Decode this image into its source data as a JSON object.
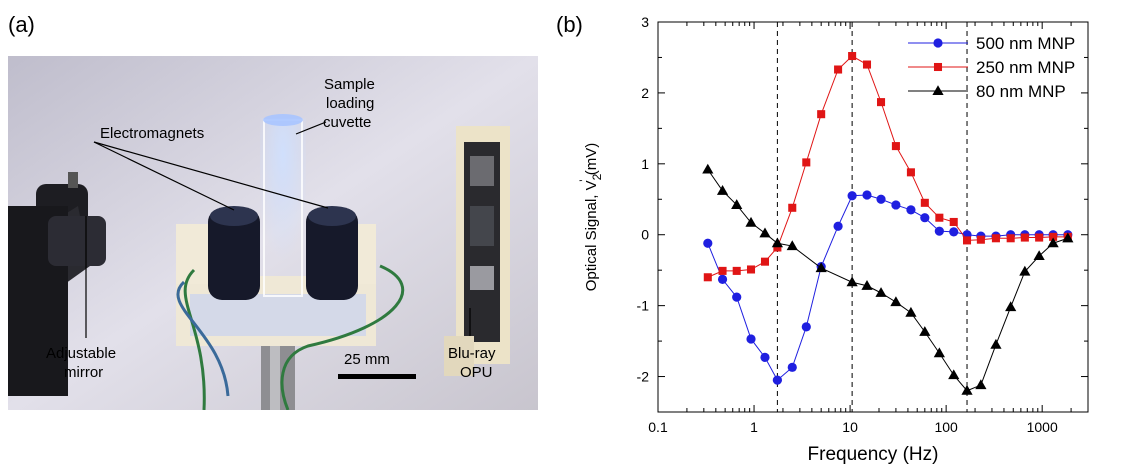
{
  "panel_labels": {
    "a": "(a)",
    "b": "(b)"
  },
  "photo": {
    "labels": {
      "sample_l1": "Sample",
      "sample_l2": "loading",
      "sample_l3": "cuvette",
      "electromagnets": "Electromagnets",
      "mirror_l1": "Adjustable",
      "mirror_l2": "mirror",
      "opu_l1": "Blu-ray",
      "opu_l2": "OPU",
      "scale": "25 mm"
    }
  },
  "chart_data": {
    "type": "line",
    "xlabel": "Frequency (Hz)",
    "ylabel_main": "Optical Signal, V",
    "ylabel_sub": "2",
    "ylabel_sup": "'",
    "ylabel_unit": " (mV)",
    "xscale": "log",
    "xlim": [
      0.1,
      3000
    ],
    "ylim": [
      -2.5,
      3
    ],
    "xticks": [
      0.1,
      1,
      10,
      100,
      1000
    ],
    "xtick_labels": [
      "0.1",
      "1",
      "10",
      "100",
      "1000"
    ],
    "yticks": [
      -2,
      -1,
      0,
      1,
      2,
      3
    ],
    "ytick_labels": [
      "-2",
      "-1",
      "0",
      "1",
      "2",
      "3"
    ],
    "vlines": [
      1.75,
      10.5,
      165
    ],
    "legend_position": "top-right",
    "grid": false,
    "series": [
      {
        "name": "500 nm MNP",
        "color": "#1f1fe0",
        "marker": "circle",
        "x": [
          0.33,
          0.47,
          0.66,
          0.93,
          1.3,
          1.75,
          2.5,
          3.5,
          5,
          7.5,
          10.5,
          15,
          21,
          30,
          43,
          60,
          85,
          120,
          165,
          230,
          330,
          470,
          660,
          930,
          1300,
          1850
        ],
        "y": [
          -0.12,
          -0.63,
          -0.88,
          -1.47,
          -1.73,
          -2.05,
          -1.87,
          -1.3,
          -0.45,
          0.12,
          0.55,
          0.56,
          0.5,
          0.42,
          0.35,
          0.24,
          0.05,
          0.04,
          0.0,
          -0.02,
          -0.02,
          0.0,
          0.0,
          0.0,
          0.0,
          0.0
        ]
      },
      {
        "name": "250 nm MNP",
        "color": "#e01515",
        "marker": "square",
        "x": [
          0.33,
          0.47,
          0.66,
          0.93,
          1.3,
          1.75,
          2.5,
          3.5,
          5,
          7.5,
          10.5,
          15,
          21,
          30,
          43,
          60,
          85,
          120,
          165,
          230,
          330,
          470,
          660,
          930,
          1300,
          1850
        ],
        "y": [
          -0.6,
          -0.51,
          -0.51,
          -0.49,
          -0.38,
          -0.18,
          0.38,
          1.02,
          1.7,
          2.33,
          2.52,
          2.4,
          1.87,
          1.25,
          0.88,
          0.45,
          0.24,
          0.18,
          -0.08,
          -0.07,
          -0.05,
          -0.05,
          -0.04,
          -0.04,
          -0.03,
          -0.03
        ]
      },
      {
        "name": "80 nm MNP",
        "color": "#000000",
        "marker": "triangle",
        "x": [
          0.33,
          0.47,
          0.66,
          0.93,
          1.3,
          1.75,
          2.5,
          5,
          10.5,
          15,
          21,
          30,
          43,
          60,
          85,
          120,
          165,
          230,
          330,
          470,
          660,
          930,
          1300,
          1850
        ],
        "y": [
          0.92,
          0.62,
          0.42,
          0.17,
          0.02,
          -0.12,
          -0.16,
          -0.47,
          -0.67,
          -0.72,
          -0.82,
          -0.95,
          -1.1,
          -1.37,
          -1.67,
          -1.98,
          -2.2,
          -2.12,
          -1.55,
          -1.02,
          -0.52,
          -0.3,
          -0.12,
          -0.05
        ]
      }
    ]
  }
}
